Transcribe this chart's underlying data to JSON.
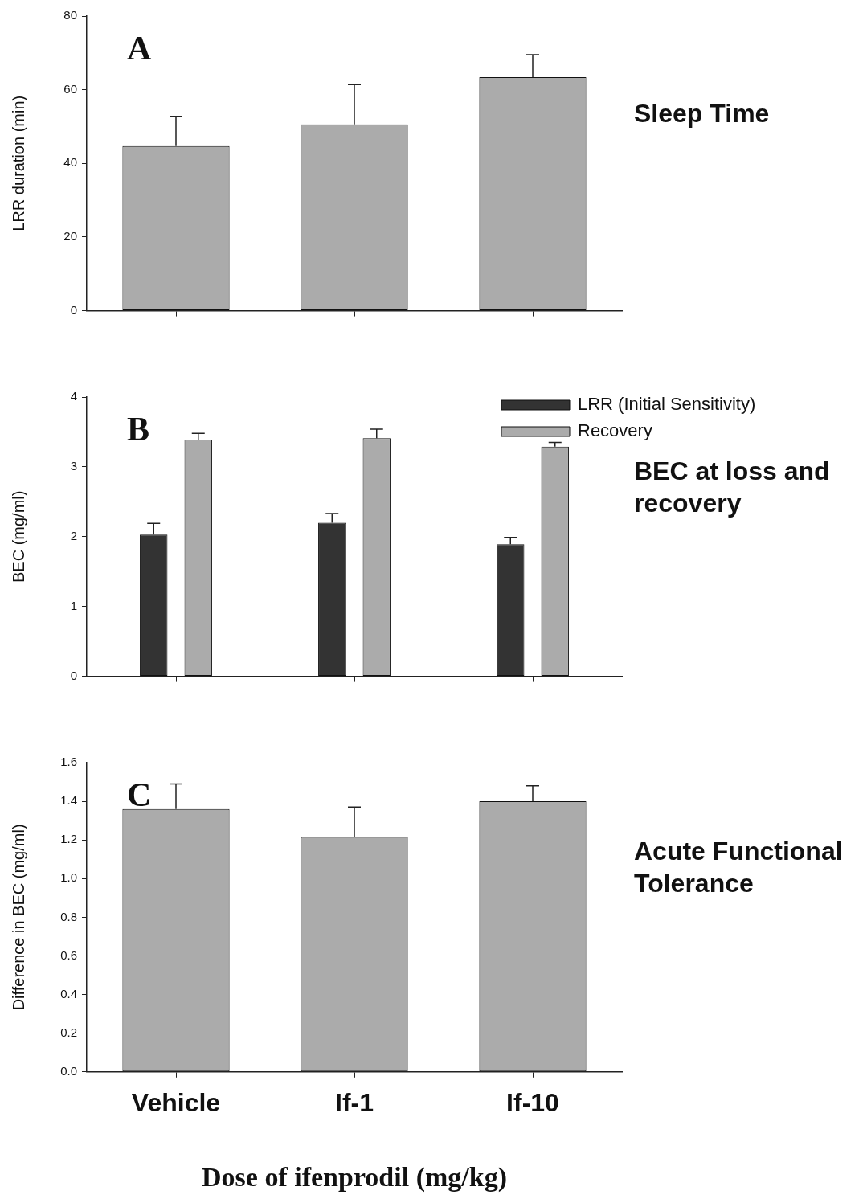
{
  "chart_data": [
    {
      "type": "bar",
      "title": "Sleep Time",
      "ylabel": "LRR duration (min)",
      "categories": [
        null,
        null,
        null
      ],
      "values": [
        44.7,
        50.6,
        63.4
      ],
      "errors": [
        [
          44.7,
          52.8
        ],
        [
          50.6,
          61.4
        ],
        [
          63.4,
          69.5
        ]
      ],
      "color": "#ababab",
      "ylim": [
        0,
        80
      ],
      "yticks": [
        0,
        20,
        40,
        60,
        80
      ],
      "annotations": [
        "A"
      ]
    },
    {
      "type": "bar",
      "title": "BEC at loss and recovery",
      "ylabel": "BEC (mg/ml)",
      "categories": [
        null,
        null,
        null
      ],
      "series": [
        {
          "name": "LRR (Initial Sensitivity)",
          "color": "#333333",
          "values": [
            2.03,
            2.2,
            1.89
          ],
          "errors": [
            [
              2.03,
              2.19
            ],
            [
              2.2,
              2.33
            ],
            [
              1.89,
              1.99
            ]
          ]
        },
        {
          "name": "Recovery",
          "color": "#ababab",
          "values": [
            3.39,
            3.41,
            3.29
          ],
          "errors": [
            [
              3.39,
              3.48
            ],
            [
              3.41,
              3.54
            ],
            [
              3.29,
              3.35
            ]
          ]
        }
      ],
      "ylim": [
        0,
        4
      ],
      "yticks": [
        0,
        1,
        2,
        3,
        4
      ],
      "legend": "top right",
      "annotations": [
        "B"
      ]
    },
    {
      "type": "bar",
      "title": "Acute Functional Tolerance",
      "xlabel": "Dose of ifenprodil (mg/kg)",
      "ylabel": "Difference in BEC (mg/ml)",
      "categories": [
        "Vehicle",
        "If-1",
        "If-10"
      ],
      "values": [
        1.36,
        1.215,
        1.4
      ],
      "errors": [
        [
          1.36,
          1.49
        ],
        [
          1.215,
          1.37
        ],
        [
          1.4,
          1.48
        ]
      ],
      "color": "#ababab",
      "ylim": [
        0,
        1.6
      ],
      "yticks": [
        {
          "value": 0,
          "label": "0.0"
        },
        0.2,
        0.4,
        0.6,
        0.8,
        {
          "value": 1,
          "label": "1.0"
        },
        1.2,
        1.4,
        1.6
      ],
      "annotations": [
        "C"
      ]
    }
  ]
}
